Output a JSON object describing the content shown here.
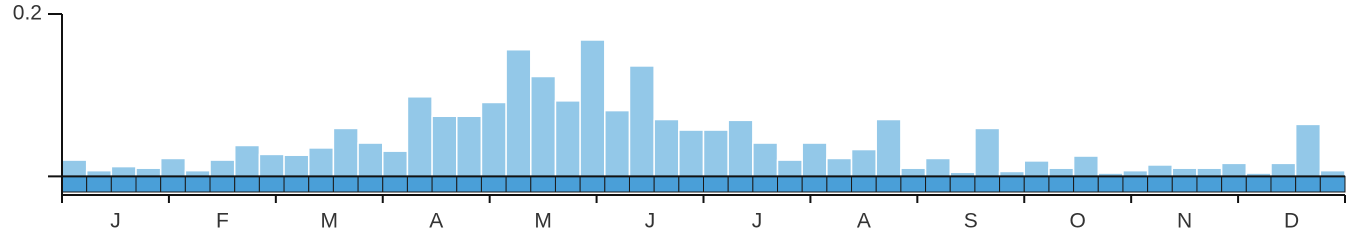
{
  "chart_data": {
    "type": "bar",
    "categories": [
      null,
      null,
      null,
      null,
      null,
      null,
      null,
      null,
      null,
      null,
      null,
      null,
      null,
      null,
      null,
      null,
      null,
      null,
      null,
      null,
      null,
      null,
      null,
      null,
      null,
      null,
      null,
      null,
      null,
      null,
      null,
      null,
      null,
      null,
      null,
      null,
      null,
      null,
      null,
      null,
      null,
      null,
      null,
      null,
      null,
      null,
      null,
      null,
      null,
      null,
      null,
      null
    ],
    "values": [
      0.02,
      0.007,
      0.012,
      0.01,
      0.022,
      0.007,
      0.02,
      0.038,
      0.027,
      0.026,
      0.035,
      0.059,
      0.041,
      0.031,
      0.098,
      0.074,
      0.074,
      0.091,
      0.156,
      0.123,
      0.093,
      0.168,
      0.081,
      0.136,
      0.07,
      0.057,
      0.057,
      0.069,
      0.041,
      0.02,
      0.041,
      0.022,
      0.033,
      0.07,
      0.01,
      0.022,
      0.005,
      0.059,
      0.006,
      0.019,
      0.01,
      0.025,
      0.004,
      0.007,
      0.014,
      0.01,
      0.01,
      0.016,
      0.004,
      0.016,
      0.064,
      0.007
    ],
    "color": "#93c8e8",
    "months": [
      "J",
      "F",
      "M",
      "A",
      "M",
      "J",
      "J",
      "A",
      "S",
      "O",
      "N",
      "D"
    ],
    "ylim": [
      -0.023,
      0.2
    ],
    "yticks": [
      {
        "value": 0,
        "label": null
      },
      0.2
    ]
  }
}
